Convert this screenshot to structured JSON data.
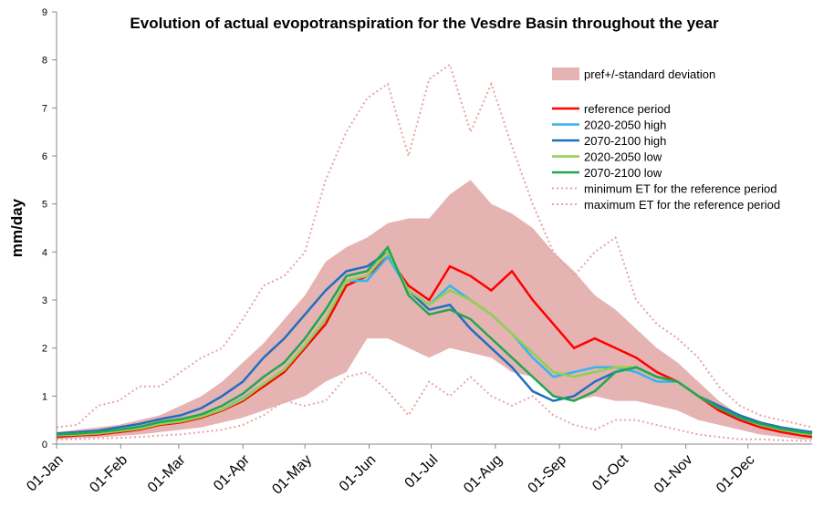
{
  "chart_data": {
    "type": "line",
    "title": "Evolution of actual evopotranspiration for the Vesdre Basin throughout the year",
    "ylabel": "mm/day",
    "x": [
      0,
      10,
      20,
      30,
      40,
      50,
      60,
      70,
      80,
      90,
      100,
      110,
      120,
      130,
      140,
      150,
      160,
      170,
      180,
      190,
      200,
      210,
      220,
      230,
      240,
      250,
      260,
      270,
      280,
      290,
      300,
      310,
      320,
      330,
      340,
      350,
      360,
      365
    ],
    "xlim": [
      0,
      365
    ],
    "xticks": [
      {
        "value": 0,
        "label": "01-Jan"
      },
      {
        "value": 31,
        "label": "01-Feb"
      },
      {
        "value": 59,
        "label": "01-Mar"
      },
      {
        "value": 90,
        "label": "01-Apr"
      },
      {
        "value": 120,
        "label": "01-May"
      },
      {
        "value": 151,
        "label": "01-Jun"
      },
      {
        "value": 181,
        "label": "01-Jul"
      },
      {
        "value": 212,
        "label": "01-Aug"
      },
      {
        "value": 243,
        "label": "01-Sep"
      },
      {
        "value": 273,
        "label": "01-Oct"
      },
      {
        "value": 304,
        "label": "01-Nov"
      },
      {
        "value": 334,
        "label": "01-Dec"
      }
    ],
    "ylim": [
      0,
      9
    ],
    "yticks": [
      0,
      1,
      2,
      3,
      4,
      5,
      6,
      7,
      8,
      9
    ],
    "band": {
      "name": "pref+/-standard deviation",
      "color": "#e6b3b3",
      "lower": [
        0.1,
        0.12,
        0.14,
        0.17,
        0.2,
        0.25,
        0.3,
        0.35,
        0.45,
        0.55,
        0.7,
        0.85,
        1.0,
        1.3,
        1.5,
        2.2,
        2.2,
        2.0,
        1.8,
        2.0,
        1.9,
        1.8,
        1.5,
        1.4,
        1.0,
        0.9,
        1.0,
        0.9,
        0.9,
        0.8,
        0.7,
        0.5,
        0.4,
        0.3,
        0.2,
        0.15,
        0.1,
        0.1
      ],
      "upper": [
        0.25,
        0.3,
        0.35,
        0.4,
        0.5,
        0.6,
        0.8,
        1.0,
        1.3,
        1.7,
        2.1,
        2.6,
        3.1,
        3.8,
        4.1,
        4.3,
        4.6,
        4.7,
        4.7,
        5.2,
        5.5,
        5.0,
        4.8,
        4.5,
        4.0,
        3.6,
        3.1,
        2.8,
        2.4,
        2.0,
        1.7,
        1.3,
        0.9,
        0.6,
        0.45,
        0.35,
        0.3,
        0.28
      ]
    },
    "series": [
      {
        "name": "reference period",
        "color": "#ff0000",
        "style": "solid",
        "values": [
          0.15,
          0.18,
          0.2,
          0.25,
          0.3,
          0.4,
          0.45,
          0.55,
          0.7,
          0.9,
          1.2,
          1.5,
          2.0,
          2.5,
          3.3,
          3.5,
          3.9,
          3.3,
          3.0,
          3.7,
          3.5,
          3.2,
          3.6,
          3.0,
          2.5,
          2.0,
          2.2,
          2.0,
          1.8,
          1.5,
          1.3,
          1.0,
          0.7,
          0.5,
          0.35,
          0.25,
          0.18,
          0.15
        ]
      },
      {
        "name": "2020-2050 high",
        "color": "#33b5f0",
        "style": "solid",
        "values": [
          0.2,
          0.22,
          0.24,
          0.28,
          0.33,
          0.42,
          0.48,
          0.58,
          0.72,
          0.95,
          1.25,
          1.55,
          2.05,
          2.6,
          3.4,
          3.4,
          3.9,
          3.2,
          2.9,
          3.3,
          3.0,
          2.7,
          2.3,
          1.8,
          1.4,
          1.5,
          1.6,
          1.6,
          1.5,
          1.3,
          1.3,
          1.0,
          0.75,
          0.55,
          0.4,
          0.3,
          0.25,
          0.22
        ]
      },
      {
        "name": "2070-2100 high",
        "color": "#1f6fc0",
        "style": "solid",
        "values": [
          0.22,
          0.25,
          0.28,
          0.35,
          0.42,
          0.52,
          0.6,
          0.75,
          1.0,
          1.3,
          1.8,
          2.2,
          2.7,
          3.2,
          3.6,
          3.7,
          4.0,
          3.2,
          2.8,
          2.9,
          2.4,
          2.0,
          1.6,
          1.1,
          0.9,
          1.0,
          1.3,
          1.5,
          1.6,
          1.4,
          1.3,
          1.0,
          0.8,
          0.6,
          0.45,
          0.35,
          0.28,
          0.25
        ]
      },
      {
        "name": "2020-2050 low",
        "color": "#92d050",
        "style": "solid",
        "values": [
          0.18,
          0.2,
          0.22,
          0.27,
          0.32,
          0.42,
          0.47,
          0.57,
          0.72,
          0.93,
          1.25,
          1.55,
          2.05,
          2.6,
          3.4,
          3.5,
          4.0,
          3.2,
          2.9,
          3.2,
          3.0,
          2.7,
          2.3,
          1.9,
          1.5,
          1.4,
          1.5,
          1.6,
          1.6,
          1.4,
          1.3,
          1.0,
          0.75,
          0.55,
          0.4,
          0.3,
          0.22,
          0.2
        ]
      },
      {
        "name": "2070-2100 low",
        "color": "#1fa84f",
        "style": "solid",
        "values": [
          0.2,
          0.22,
          0.25,
          0.3,
          0.36,
          0.46,
          0.52,
          0.62,
          0.8,
          1.05,
          1.4,
          1.7,
          2.2,
          2.8,
          3.5,
          3.6,
          4.1,
          3.1,
          2.7,
          2.8,
          2.6,
          2.2,
          1.8,
          1.4,
          1.0,
          0.9,
          1.1,
          1.5,
          1.6,
          1.4,
          1.3,
          1.0,
          0.75,
          0.55,
          0.42,
          0.32,
          0.25,
          0.22
        ]
      },
      {
        "name": "minimum ET for the reference period",
        "color": "#e8a3a3",
        "style": "dotted",
        "values": [
          0.1,
          0.1,
          0.12,
          0.13,
          0.15,
          0.18,
          0.2,
          0.25,
          0.3,
          0.4,
          0.6,
          0.9,
          0.8,
          0.9,
          1.4,
          1.5,
          1.1,
          0.6,
          1.3,
          1.0,
          1.4,
          1.0,
          0.8,
          1.0,
          0.6,
          0.4,
          0.3,
          0.5,
          0.5,
          0.4,
          0.3,
          0.2,
          0.15,
          0.1,
          0.1,
          0.08,
          0.07,
          0.07
        ]
      },
      {
        "name": "maximum ET for the reference period",
        "color": "#e8a3a3",
        "style": "dotted",
        "values": [
          0.35,
          0.4,
          0.8,
          0.9,
          1.2,
          1.2,
          1.5,
          1.8,
          2.0,
          2.6,
          3.3,
          3.5,
          4.0,
          5.5,
          6.5,
          7.2,
          7.5,
          6.0,
          7.6,
          7.9,
          6.5,
          7.5,
          6.2,
          5.0,
          4.0,
          3.5,
          4.0,
          4.3,
          3.0,
          2.5,
          2.2,
          1.8,
          1.2,
          0.8,
          0.6,
          0.5,
          0.4,
          0.35
        ]
      }
    ]
  }
}
